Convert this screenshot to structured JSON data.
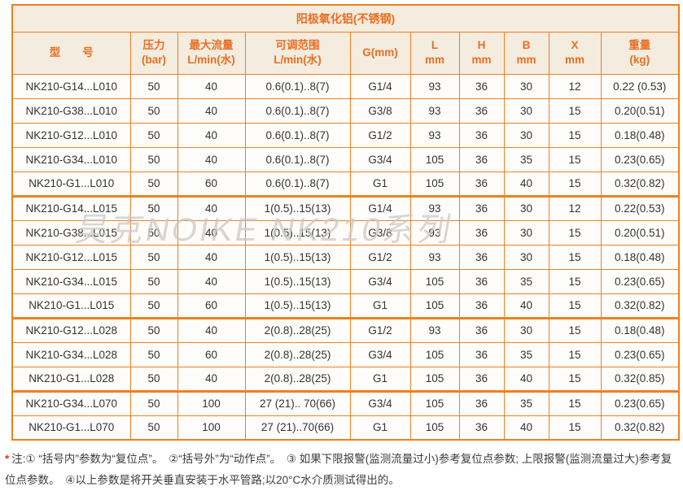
{
  "title_bar": {
    "title": "阳极氧化铝(不锈钢)"
  },
  "columns": [
    {
      "l1": "型　　号",
      "l2": ""
    },
    {
      "l1": "压力",
      "l2": "(bar)"
    },
    {
      "l1": "最大流量",
      "l2": "L/min(水)"
    },
    {
      "l1": "可调范围",
      "l2": "L/min(水)"
    },
    {
      "l1": "G(mm)",
      "l2": ""
    },
    {
      "l1": "L",
      "l2": "mm"
    },
    {
      "l1": "H",
      "l2": "mm"
    },
    {
      "l1": "B",
      "l2": "mm"
    },
    {
      "l1": "X",
      "l2": "mm"
    },
    {
      "l1": "重量",
      "l2": "(kg)"
    }
  ],
  "groups": [
    {
      "rows": [
        [
          "NK210-G14...L010",
          "50",
          "40",
          "0.6(0.1)..8(7)",
          "G1/4",
          "93",
          "36",
          "30",
          "12",
          "0.22 (0.53)"
        ],
        [
          "NK210-G38...L010",
          "50",
          "40",
          "0.6(0.1)..8(7)",
          "G3/8",
          "93",
          "36",
          "30",
          "15",
          "0.20(0.51)"
        ],
        [
          "NK210-G12...L010",
          "50",
          "40",
          "0.6(0.1)..8(7)",
          "G1/2",
          "93",
          "36",
          "30",
          "15",
          "0.18(0.48)"
        ],
        [
          "NK210-G34...L010",
          "50",
          "40",
          "0.6(0.1)..8(7)",
          "G3/4",
          "105",
          "36",
          "35",
          "15",
          "0.23(0.65)"
        ],
        [
          "NK210-G1...L010",
          "50",
          "60",
          "0.6(0.1)..8(7)",
          "G1",
          "105",
          "36",
          "40",
          "15",
          "0.32(0.82)"
        ]
      ]
    },
    {
      "rows": [
        [
          "NK210-G14...L015",
          "50",
          "40",
          "1(0.5)..15(13)",
          "G1/4",
          "93",
          "36",
          "30",
          "12",
          "0.22(0.53)"
        ],
        [
          "NK210-G38...L015",
          "50",
          "40",
          "1(0.5)..15(13)",
          "G3/8",
          "93",
          "36",
          "30",
          "15",
          "0.20(0.51)"
        ],
        [
          "NK210-G12...L015",
          "50",
          "40",
          "1(0.5)..15(13)",
          "G1/2",
          "93",
          "36",
          "30",
          "15",
          "0.18(0.48)"
        ],
        [
          "NK210-G34...L015",
          "50",
          "40",
          "1(0.5)..15(13)",
          "G3/4",
          "105",
          "36",
          "35",
          "15",
          "0.23(0.65)"
        ],
        [
          "NK210-G1...L015",
          "50",
          "60",
          "1(0.5)..15(13)",
          "G1",
          "105",
          "36",
          "40",
          "15",
          "0.32(0.82)"
        ]
      ]
    },
    {
      "rows": [
        [
          "NK210-G12...L028",
          "50",
          "40",
          "2(0.8)..28(25)",
          "G1/2",
          "93",
          "36",
          "30",
          "15",
          "0.18(0.48)"
        ],
        [
          "NK210-G34...L028",
          "50",
          "60",
          "2(0.8)..28(25)",
          "G3/4",
          "105",
          "36",
          "35",
          "15",
          "0.23(0.65)"
        ],
        [
          "NK210-G1...L028",
          "50",
          "40",
          "2(0.8)..28(25)",
          "G1",
          "105",
          "36",
          "40",
          "15",
          "0.32(0.85)"
        ]
      ]
    },
    {
      "rows": [
        [
          "NK210-G34...L070",
          "50",
          "100",
          "27 (21).. 70(66)",
          "G3/4",
          "105",
          "36",
          "35",
          "15",
          "0.23(0.65)"
        ],
        [
          "NK210-G1...L070",
          "50",
          "100",
          "27 (21)..70(66)",
          "G1",
          "105",
          "36",
          "40",
          "15",
          "0.32(0.82)"
        ]
      ]
    }
  ],
  "footnote": {
    "star": "*",
    "text": "注:① “括号内”参数为“复位点”。　②“括号外”为“动作点”。　③ 如果下限报警(监测流量过小)参考复位点参数; 上限报警(监测流量过大)参考复位点参数。　④以上参数是将开关垂直安装于水平管路;以20°C水介质测试得出的。"
  },
  "watermark": "昊克NOIKE NK210系列",
  "colors": {
    "border": "#f0801f",
    "header_bg": "#f3ecdf",
    "header_text": "#eb6d20",
    "body_text": "#333333",
    "row_bg": "#fefdfb",
    "footnote_star": "#e8380d",
    "watermark": "#c9c9c9"
  }
}
